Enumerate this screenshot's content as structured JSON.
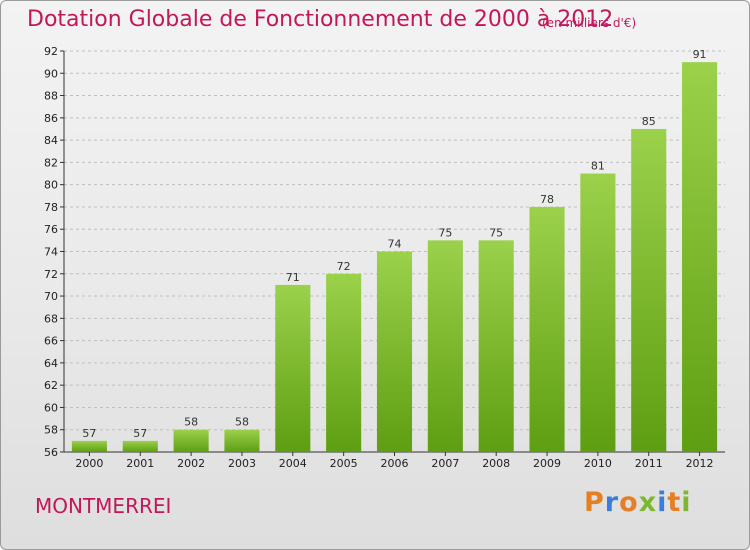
{
  "header": {
    "title": "Dotation Globale de Fonctionnement de 2000 à 2012",
    "unit": "(en milliers d'€)"
  },
  "footer": {
    "commune": "MONTMERREI",
    "logo": "Proxiti"
  },
  "colors": {
    "title": "#c2185b",
    "bar_top": "#9bd14b",
    "bar_bottom": "#5e9e12",
    "grid": "#bfbfbf",
    "logo_letters": [
      "#e67e22",
      "#3b7dd8",
      "#e67e22",
      "#7cb82f",
      "#3b7dd8",
      "#e67e22",
      "#7cb82f"
    ]
  },
  "chart_data": {
    "type": "bar",
    "title": "Dotation Globale de Fonctionnement de 2000 à 2012",
    "subtitle": "(en milliers d'€)",
    "xlabel": "",
    "ylabel": "",
    "categories": [
      "2000",
      "2001",
      "2002",
      "2003",
      "2004",
      "2005",
      "2006",
      "2007",
      "2008",
      "2009",
      "2010",
      "2011",
      "2012"
    ],
    "values": [
      57,
      57,
      58,
      58,
      71,
      72,
      74,
      75,
      75,
      78,
      81,
      85,
      91
    ],
    "ylim": [
      56,
      92
    ],
    "yticks": [
      56,
      58,
      60,
      62,
      64,
      66,
      68,
      70,
      72,
      74,
      76,
      78,
      80,
      82,
      84,
      86,
      88,
      90,
      92
    ],
    "grid": true,
    "legend": "none"
  }
}
